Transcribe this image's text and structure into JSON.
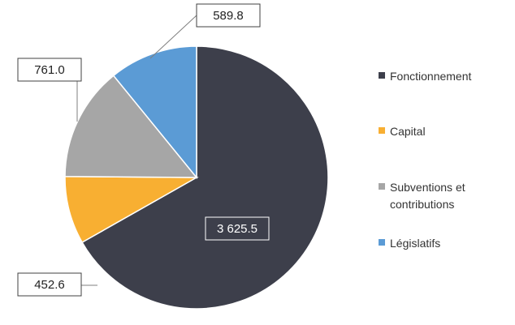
{
  "chart_data": {
    "type": "pie",
    "title": "",
    "slices": [
      {
        "label": "Fonctionnement",
        "value": 3625.5,
        "value_label": "3 625.5",
        "color": "#3d3f4b"
      },
      {
        "label": "Capital",
        "value": 452.6,
        "value_label": "452.6",
        "color": "#f8af32"
      },
      {
        "label": "Subventions et contributions",
        "value": 761.0,
        "value_label": "761.0",
        "color": "#a6a6a6"
      },
      {
        "label": "Législatifs",
        "value": 589.8,
        "value_label": "589.8",
        "color": "#5b9bd5"
      }
    ],
    "start_angle": "12 o'clock",
    "direction": "clockwise",
    "legend_position": "right"
  }
}
